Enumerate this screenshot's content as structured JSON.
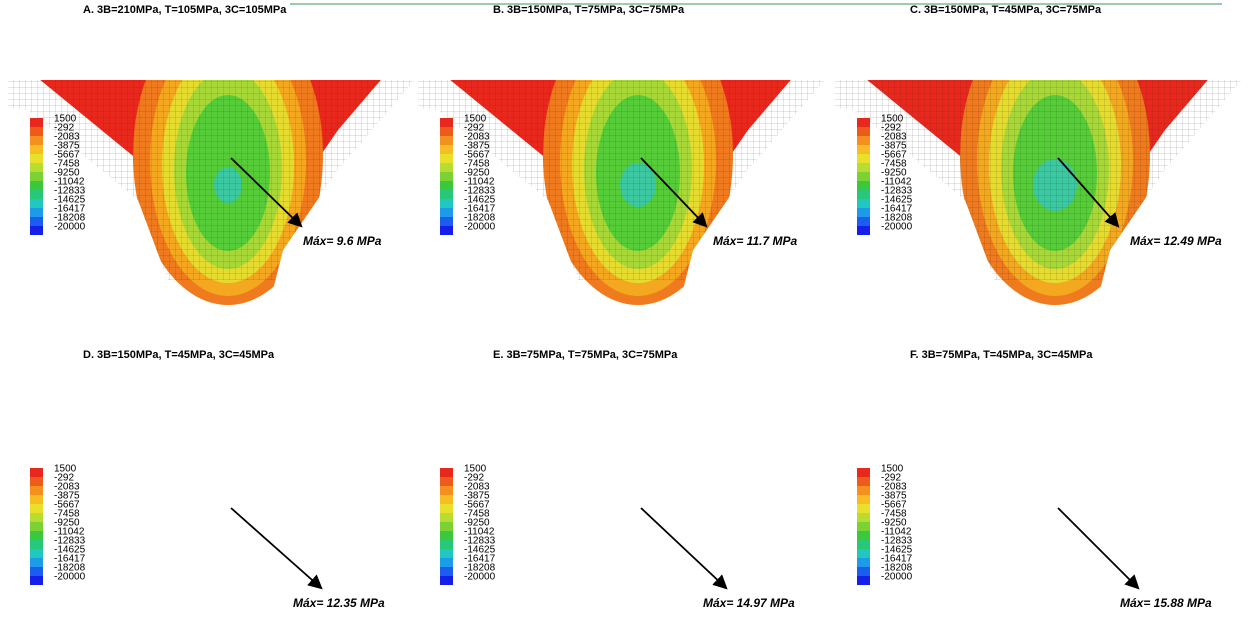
{
  "legend": {
    "labels": [
      "1500",
      "-292",
      "-2083",
      "-3875",
      "-5667",
      "-7458",
      "-9250",
      "-11042",
      "-12833",
      "-14625",
      "-16417",
      "-18208",
      "-20000"
    ],
    "colors": [
      "#e8281c",
      "#ee5a1c",
      "#f4901e",
      "#f6be22",
      "#e8e02a",
      "#b8dc30",
      "#7cd234",
      "#3cc83c",
      "#28c87a",
      "#20c8c0",
      "#1c9ce8",
      "#1c5cf0",
      "#1420e8"
    ]
  },
  "panels": [
    {
      "title": "A. 3B=210MPa, T=105MPa, 3C=105MPa",
      "max_label": "Máx= 9.6 MPa"
    },
    {
      "title": "B. 3B=150MPa, T=75MPa, 3C=75MPa",
      "max_label": "Máx= 11.7 MPa"
    },
    {
      "title": "C. 3B=150MPa, T=45MPa, 3C=75MPa",
      "max_label": "Máx= 12.49 MPa"
    },
    {
      "title": "D. 3B=150MPa, T=45MPa, 3C=45MPa",
      "max_label": "Máx= 12.35 MPa"
    },
    {
      "title": "E. 3B=75MPa, T=75MPa, 3C=75MPa",
      "max_label": "Máx= 14.97 MPa"
    },
    {
      "title": "F. 3B=75MPa, T=45MPa, 3C=45MPa",
      "max_label": "Máx= 15.88 MPa"
    }
  ]
}
